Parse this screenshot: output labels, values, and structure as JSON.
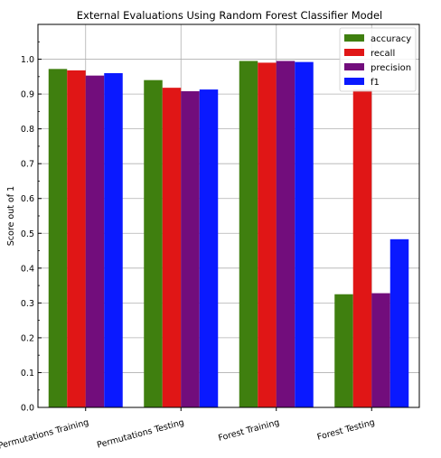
{
  "chart_data": {
    "type": "bar",
    "title": "External Evaluations Using Random Forest Classifier Model",
    "xlabel": "",
    "ylabel": "Score out of 1",
    "ylim": [
      0,
      1.1
    ],
    "yticks": [
      0.0,
      0.1,
      0.2,
      0.3,
      0.4,
      0.5,
      0.6,
      0.7,
      0.8,
      0.9,
      1.0
    ],
    "grid": true,
    "legend_position": "top-right",
    "categories": [
      "Permutations Training",
      "Permutations Testing",
      "Forest Training",
      "Forest Testing"
    ],
    "series": [
      {
        "name": "accuracy",
        "color": "#3f7f0f",
        "values": [
          0.972,
          0.94,
          0.995,
          0.325
        ]
      },
      {
        "name": "recall",
        "color": "#e01616",
        "values": [
          0.968,
          0.918,
          0.99,
          0.912
        ]
      },
      {
        "name": "precision",
        "color": "#720d7c",
        "values": [
          0.953,
          0.908,
          0.995,
          0.328
        ]
      },
      {
        "name": "f1",
        "color": "#0a19ff",
        "values": [
          0.96,
          0.913,
          0.992,
          0.483
        ]
      }
    ]
  }
}
